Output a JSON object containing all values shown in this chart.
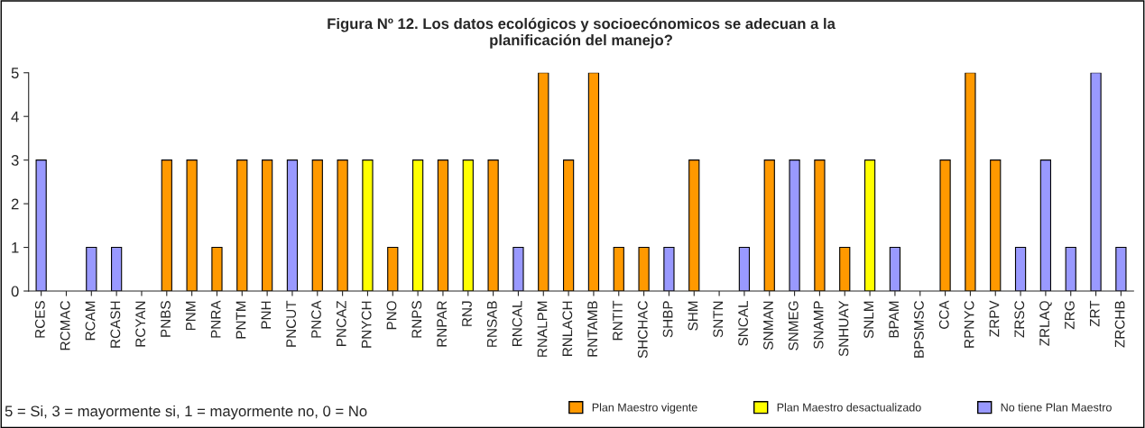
{
  "chart_data": {
    "type": "bar",
    "title": "Figura Nº 12. Los datos ecológicos y socioecónomicos se adecuan a la\nplanificación del manejo?",
    "categories": [
      "RCES",
      "RCMAC",
      "RCAM",
      "RCASH",
      "RCYAN",
      "PNBS",
      "PNM",
      "PNRA",
      "PNTM",
      "PNH",
      "PNCUT",
      "PNCA",
      "PNCAZ",
      "PNYCH",
      "PNO",
      "RNPS",
      "RNPAR",
      "RNJ",
      "RNSAB",
      "RNCAL",
      "RNALPM",
      "RNLACH",
      "RNTAMB",
      "RNTIT",
      "SHCHAC",
      "SHBP",
      "SHM",
      "SNTN",
      "SNCAL",
      "SNMAN",
      "SNMEG",
      "SNAMP",
      "SNHUAY",
      "SNLM",
      "BPAM",
      "BPSMSC",
      "CCA",
      "RPNYC",
      "ZRPV",
      "ZRSC",
      "ZRLAQ",
      "ZRG",
      "ZRT",
      "ZRCHB"
    ],
    "series": [
      {
        "name": "Plan Maestro vigente",
        "color": "#ff9900",
        "values": [
          null,
          null,
          null,
          null,
          null,
          3,
          3,
          1,
          3,
          3,
          null,
          3,
          3,
          null,
          1,
          null,
          3,
          null,
          3,
          null,
          5,
          3,
          5,
          1,
          1,
          null,
          3,
          null,
          null,
          3,
          null,
          3,
          1,
          null,
          null,
          null,
          3,
          5,
          3,
          null,
          null,
          null,
          null,
          null
        ]
      },
      {
        "name": "Plan Maestro desactualizado",
        "color": "#ffff00",
        "values": [
          null,
          null,
          null,
          null,
          null,
          null,
          null,
          null,
          null,
          null,
          null,
          null,
          null,
          3,
          null,
          3,
          null,
          3,
          null,
          null,
          null,
          null,
          null,
          null,
          null,
          null,
          null,
          null,
          null,
          null,
          null,
          null,
          null,
          3,
          null,
          null,
          null,
          null,
          null,
          null,
          null,
          null,
          null,
          null
        ]
      },
      {
        "name": "No tiene Plan Maestro",
        "color": "#9999ff",
        "values": [
          3,
          null,
          1,
          1,
          null,
          null,
          null,
          null,
          null,
          null,
          3,
          null,
          null,
          null,
          null,
          null,
          null,
          null,
          null,
          1,
          null,
          null,
          null,
          null,
          null,
          1,
          null,
          null,
          1,
          null,
          3,
          null,
          null,
          null,
          1,
          null,
          null,
          null,
          null,
          1,
          3,
          1,
          5,
          1
        ]
      }
    ],
    "ylim": [
      0,
      5
    ],
    "yticks": [
      0,
      1,
      2,
      3,
      4,
      5
    ],
    "grid": false,
    "legend": "bottom",
    "annotations": [
      "5 = Si, 3 = mayormente si, 1 = mayormente no, 0 = No"
    ]
  }
}
